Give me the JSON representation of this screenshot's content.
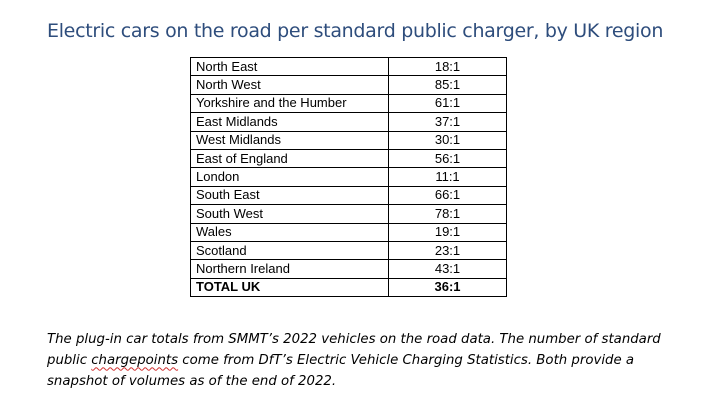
{
  "title": "Electric cars on the road per standard public charger, by UK region",
  "table": {
    "rows": [
      {
        "region": "North East",
        "ratio": "18:1"
      },
      {
        "region": "North West",
        "ratio": "85:1"
      },
      {
        "region": "Yorkshire and the Humber",
        "ratio": "61:1"
      },
      {
        "region": "East Midlands",
        "ratio": "37:1"
      },
      {
        "region": "West Midlands",
        "ratio": "30:1"
      },
      {
        "region": "East of England",
        "ratio": "56:1"
      },
      {
        "region": "London",
        "ratio": "11:1"
      },
      {
        "region": "South East",
        "ratio": "66:1"
      },
      {
        "region": "South West",
        "ratio": "78:1"
      },
      {
        "region": "Wales",
        "ratio": "19:1"
      },
      {
        "region": "Scotland",
        "ratio": "23:1"
      },
      {
        "region": "Northern Ireland",
        "ratio": "43:1"
      }
    ],
    "total": {
      "region": "TOTAL UK",
      "ratio": "36:1"
    }
  },
  "caption": {
    "part1": "The plug-in car totals from SMMT’s 2022 vehicles on the road data. The number of standard public ",
    "misspelled_word": "chargepoints",
    "part2": " come from DfT’s Electric Vehicle Charging Statistics. Both provide a snapshot of volumes as of the end of 2022."
  }
}
